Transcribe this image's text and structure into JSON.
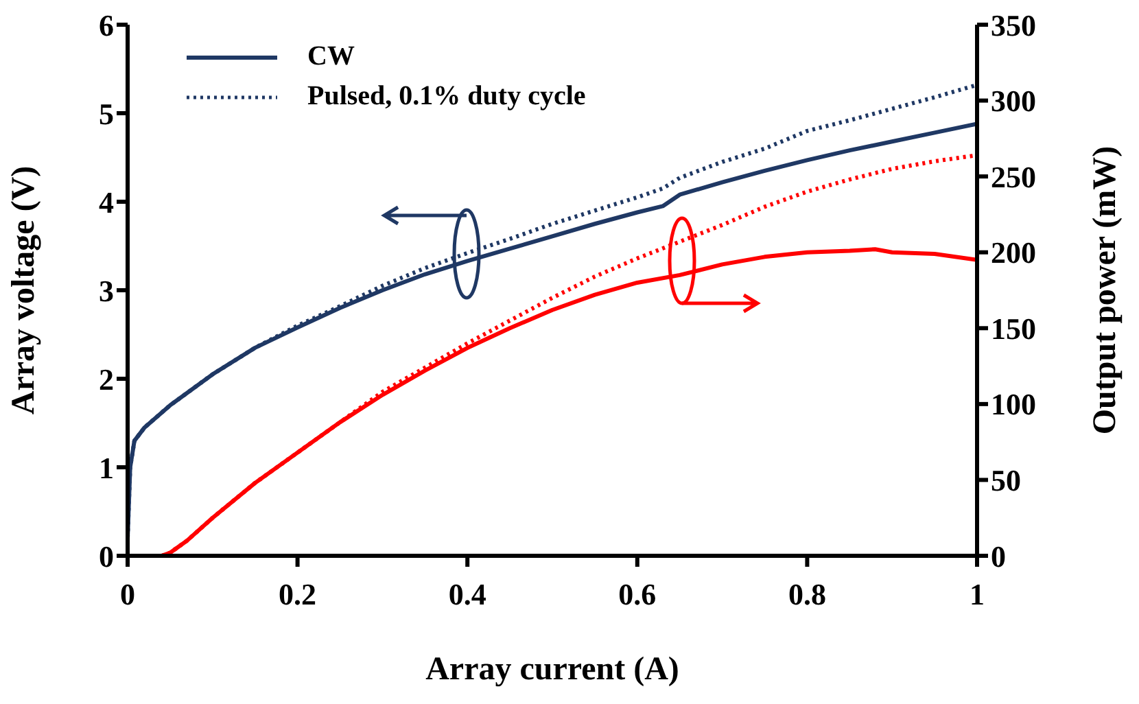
{
  "chart_data": {
    "type": "line",
    "xlabel": "Array current (A)",
    "ylabel": "Array voltage (V)",
    "y2label": "Output power (mW)",
    "xlim": [
      0,
      1
    ],
    "xticks": [
      0,
      0.2,
      0.4,
      0.6,
      0.8,
      1
    ],
    "ylim": [
      0,
      6
    ],
    "yticks": [
      0,
      1,
      2,
      3,
      4,
      5,
      6
    ],
    "y2lim": [
      0,
      350
    ],
    "y2ticks": [
      0,
      50,
      100,
      150,
      200,
      250,
      300,
      350
    ],
    "legend": "top left",
    "marker": "none",
    "series": [
      {
        "name": "CW",
        "color": "#1f3864",
        "line_style": "solid",
        "x": [
          0,
          0.003,
          0.008,
          0.02,
          0.05,
          0.1,
          0.15,
          0.2,
          0.25,
          0.3,
          0.35,
          0.4,
          0.45,
          0.5,
          0.55,
          0.6,
          0.63,
          0.65,
          0.7,
          0.75,
          0.8,
          0.85,
          0.9,
          0.95,
          1
        ],
        "values": [
          0.2,
          1.0,
          1.3,
          1.45,
          1.7,
          2.05,
          2.35,
          2.58,
          2.8,
          3.0,
          3.18,
          3.33,
          3.47,
          3.61,
          3.75,
          3.88,
          3.95,
          4.08,
          4.22,
          4.35,
          4.47,
          4.58,
          4.68,
          4.78,
          4.88
        ]
      },
      {
        "name": "Pulsed, 0.1% duty cycle",
        "color": "#1f3864",
        "line_style": "dotted",
        "x": [
          0,
          0.003,
          0.008,
          0.02,
          0.05,
          0.1,
          0.15,
          0.2,
          0.25,
          0.3,
          0.35,
          0.4,
          0.45,
          0.5,
          0.55,
          0.6,
          0.63,
          0.65,
          0.7,
          0.75,
          0.8,
          0.85,
          0.9,
          0.95,
          1
        ],
        "values": [
          0.2,
          1.0,
          1.3,
          1.45,
          1.7,
          2.05,
          2.35,
          2.6,
          2.82,
          3.05,
          3.25,
          3.42,
          3.58,
          3.75,
          3.9,
          4.05,
          4.15,
          4.27,
          4.45,
          4.6,
          4.8,
          4.92,
          5.05,
          5.18,
          5.32
        ]
      },
      {
        "color": "#ff0000",
        "line_style": "solid",
        "axis": "y2",
        "x": [
          0,
          0.04,
          0.05,
          0.07,
          0.1,
          0.15,
          0.2,
          0.25,
          0.3,
          0.35,
          0.4,
          0.45,
          0.5,
          0.55,
          0.6,
          0.65,
          0.7,
          0.75,
          0.8,
          0.85,
          0.88,
          0.9,
          0.95,
          1
        ],
        "values": [
          0,
          0,
          2,
          10,
          25,
          48,
          68,
          88,
          106,
          122,
          137,
          150,
          162,
          172,
          180,
          185,
          192,
          197,
          200,
          201,
          202,
          200,
          199,
          195
        ]
      },
      {
        "color": "#ff0000",
        "line_style": "dotted",
        "axis": "y2",
        "x": [
          0,
          0.04,
          0.05,
          0.07,
          0.1,
          0.15,
          0.2,
          0.25,
          0.3,
          0.35,
          0.4,
          0.45,
          0.5,
          0.55,
          0.6,
          0.65,
          0.7,
          0.75,
          0.8,
          0.85,
          0.9,
          0.95,
          1
        ],
        "values": [
          0,
          0,
          2,
          10,
          25,
          48,
          68,
          88,
          108,
          124,
          140,
          155,
          170,
          184,
          196,
          207,
          218,
          230,
          240,
          248,
          255,
          260,
          264
        ]
      }
    ]
  }
}
